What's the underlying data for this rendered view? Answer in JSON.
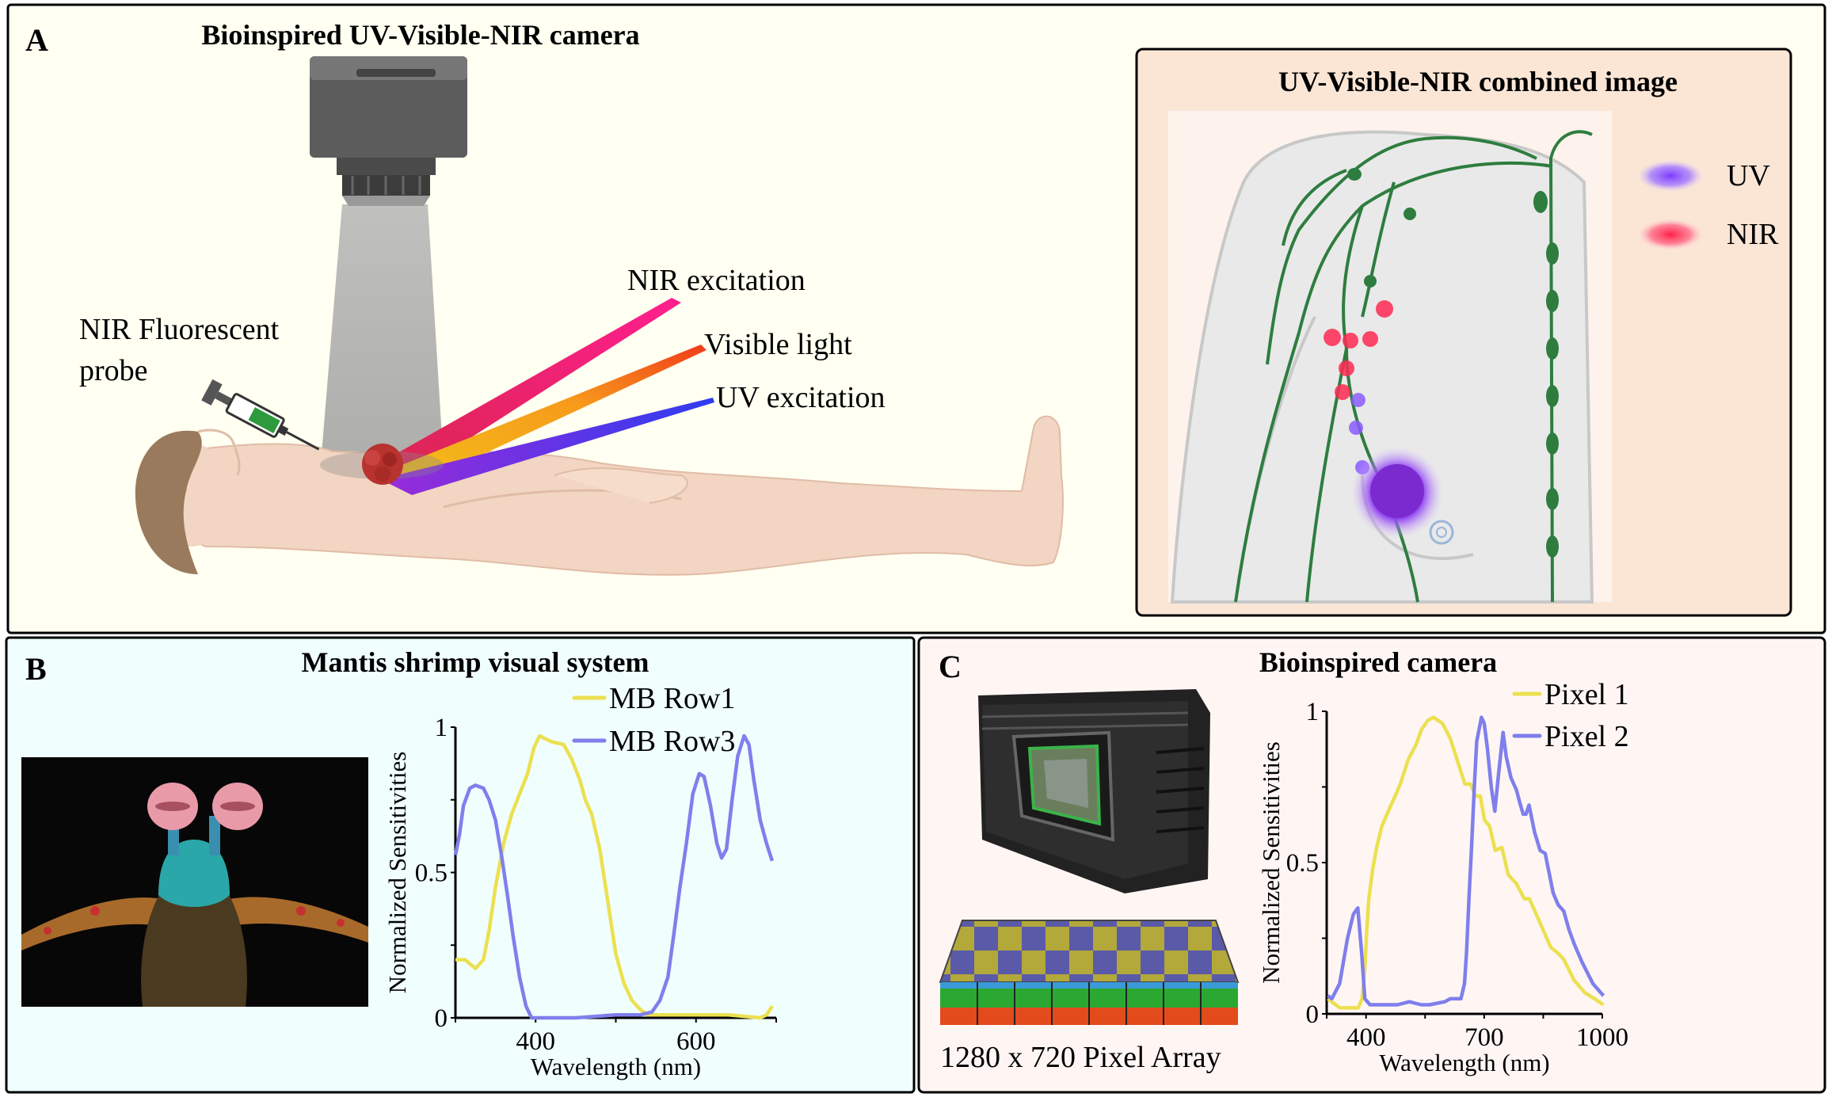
{
  "panel_a": {
    "label": "A",
    "title": "Bioinspired UV-Visible-NIR camera",
    "annotations": {
      "probe_line1": "NIR Fluorescent",
      "probe_line2": "probe",
      "nir": "NIR excitation",
      "visible": "Visible light",
      "uv": "UV excitation"
    },
    "beam_colors": {
      "nir": "#e8106a",
      "visible": "#f7a21b",
      "uv": "#3a3ae8"
    },
    "inset": {
      "title": "UV-Visible-NIR combined image",
      "legend": [
        {
          "label": "UV",
          "color": "#8a4dff"
        },
        {
          "label": "NIR",
          "color": "#ff2a55"
        }
      ]
    }
  },
  "panel_b": {
    "label": "B",
    "title": "Mantis shrimp visual system"
  },
  "panel_c": {
    "label": "C",
    "title": "Bioinspired camera",
    "caption": "1280 x 720 Pixel Array"
  },
  "chart_data": [
    {
      "type": "line",
      "panel": "B",
      "xlabel": "Wavelength (nm)",
      "ylabel": "Normalized Sensitivities",
      "xlim": [
        300,
        700
      ],
      "ylim": [
        0,
        1
      ],
      "xticks": [
        300,
        400,
        500,
        600,
        700
      ],
      "xtick_labels": [
        "",
        "400",
        "",
        "600",
        ""
      ],
      "yticks": [
        0,
        0.25,
        0.5,
        0.75,
        1
      ],
      "ytick_labels": [
        "0",
        "",
        "0.5",
        "",
        "1"
      ],
      "grid": false,
      "legend_placement": "top-right",
      "series": [
        {
          "name": "MB Row1",
          "color": "#ece050",
          "x": [
            300,
            312,
            325,
            335,
            342,
            350,
            360,
            370,
            380,
            390,
            398,
            405,
            412,
            420,
            435,
            445,
            455,
            462,
            470,
            480,
            490,
            500,
            510,
            520,
            530,
            540,
            560,
            600,
            640,
            680,
            688,
            695
          ],
          "y": [
            0.2,
            0.2,
            0.17,
            0.2,
            0.3,
            0.45,
            0.6,
            0.7,
            0.77,
            0.84,
            0.93,
            0.97,
            0.96,
            0.95,
            0.94,
            0.89,
            0.82,
            0.75,
            0.7,
            0.58,
            0.4,
            0.22,
            0.12,
            0.06,
            0.03,
            0.01,
            0.01,
            0.01,
            0.01,
            0.0,
            0.01,
            0.04
          ]
        },
        {
          "name": "MB Row3",
          "color": "#7f7fec",
          "x": [
            300,
            305,
            310,
            318,
            325,
            335,
            342,
            350,
            358,
            365,
            372,
            380,
            388,
            395,
            420,
            450,
            500,
            530,
            545,
            555,
            565,
            572,
            580,
            588,
            596,
            604,
            610,
            618,
            626,
            632,
            638,
            645,
            652,
            660,
            666,
            672,
            680,
            688,
            695
          ],
          "y": [
            0.56,
            0.63,
            0.73,
            0.79,
            0.8,
            0.79,
            0.75,
            0.68,
            0.55,
            0.42,
            0.28,
            0.14,
            0.04,
            0.0,
            0.0,
            0.0,
            0.01,
            0.01,
            0.02,
            0.06,
            0.14,
            0.28,
            0.45,
            0.6,
            0.77,
            0.84,
            0.83,
            0.73,
            0.6,
            0.55,
            0.58,
            0.75,
            0.9,
            0.97,
            0.94,
            0.82,
            0.68,
            0.6,
            0.54
          ]
        }
      ]
    },
    {
      "type": "line",
      "panel": "C",
      "xlabel": "Wavelength (nm)",
      "ylabel": "Normalized Sensitivities",
      "xlim": [
        300,
        1000
      ],
      "ylim": [
        0,
        1
      ],
      "xticks": [
        300,
        400,
        550,
        700,
        850,
        1000
      ],
      "xtick_labels": [
        "",
        "400",
        "",
        "700",
        "",
        "1000"
      ],
      "yticks": [
        0,
        0.25,
        0.5,
        0.75,
        1
      ],
      "ytick_labels": [
        "0",
        "",
        "0.5",
        "",
        "1"
      ],
      "grid": false,
      "legend_placement": "top-right",
      "series": [
        {
          "name": "Pixel 1",
          "color": "#ece050",
          "x": [
            303,
            333,
            380,
            390,
            397,
            402,
            407,
            417,
            427,
            440,
            460,
            474,
            487,
            507,
            527,
            541,
            557,
            571,
            594,
            614,
            631,
            651,
            665,
            678,
            690,
            701,
            714,
            728,
            745,
            761,
            782,
            802,
            815,
            842,
            869,
            888,
            902,
            929,
            956,
            980,
            1003
          ],
          "y": [
            0.05,
            0.02,
            0.02,
            0.05,
            0.15,
            0.28,
            0.38,
            0.48,
            0.55,
            0.62,
            0.68,
            0.72,
            0.76,
            0.84,
            0.89,
            0.94,
            0.97,
            0.98,
            0.96,
            0.91,
            0.84,
            0.76,
            0.76,
            0.72,
            0.72,
            0.64,
            0.62,
            0.54,
            0.55,
            0.46,
            0.43,
            0.38,
            0.38,
            0.3,
            0.22,
            0.2,
            0.18,
            0.11,
            0.07,
            0.05,
            0.03
          ]
        },
        {
          "name": "Pixel 2",
          "color": "#7f7fec",
          "x": [
            303,
            313,
            333,
            353,
            368,
            379,
            389,
            397,
            410,
            434,
            480,
            510,
            540,
            561,
            600,
            614,
            641,
            650,
            655,
            662,
            668,
            675,
            681,
            693,
            700,
            708,
            718,
            727,
            737,
            748,
            756,
            768,
            782,
            790,
            799,
            806,
            814,
            828,
            842,
            855,
            875,
            888,
            902,
            915,
            929,
            949,
            976,
            1003
          ],
          "y": [
            0.06,
            0.05,
            0.1,
            0.25,
            0.33,
            0.35,
            0.2,
            0.05,
            0.03,
            0.03,
            0.03,
            0.04,
            0.03,
            0.03,
            0.04,
            0.05,
            0.05,
            0.1,
            0.2,
            0.4,
            0.55,
            0.75,
            0.9,
            0.98,
            0.96,
            0.88,
            0.75,
            0.67,
            0.8,
            0.93,
            0.85,
            0.78,
            0.74,
            0.7,
            0.66,
            0.66,
            0.69,
            0.6,
            0.54,
            0.53,
            0.4,
            0.36,
            0.34,
            0.28,
            0.23,
            0.17,
            0.1,
            0.06
          ]
        }
      ]
    }
  ]
}
